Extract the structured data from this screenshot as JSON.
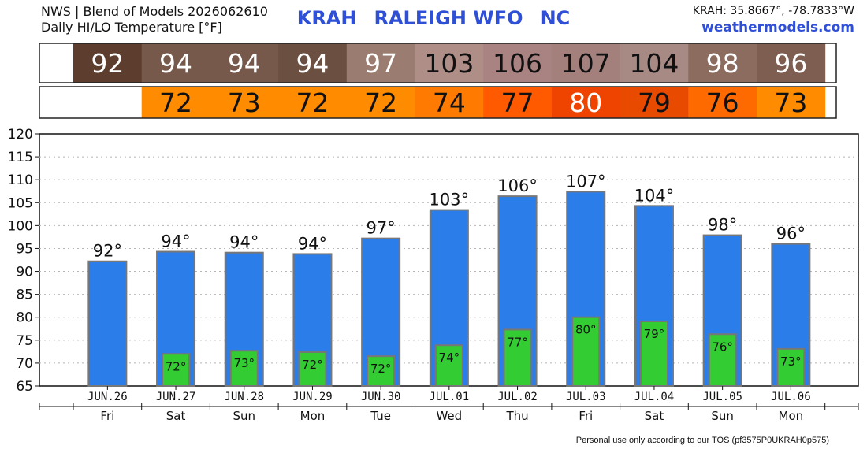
{
  "header": {
    "source_line": "NWS | Blend of Models 2026062610",
    "product_line": "Daily HI/LO Temperature [°F]",
    "station_id": "KRAH",
    "office_name": "RALEIGH WFO",
    "state": "NC",
    "coords": "KRAH: 35.8667°, -78.7833°W",
    "site": "weathermodels.com"
  },
  "footer": {
    "note": "Personal use only according to our TOS (pf3575P0UKRAH0p575)"
  },
  "chart_data": {
    "type": "bar",
    "categories": [
      "JUN.26",
      "JUN.27",
      "JUN.28",
      "JUN.29",
      "JUN.30",
      "JUL.01",
      "JUL.02",
      "JUL.03",
      "JUL.04",
      "JUL.05",
      "JUL.06"
    ],
    "weekdays": [
      "Fri",
      "Sat",
      "Sun",
      "Mon",
      "Tue",
      "Wed",
      "Thu",
      "Fri",
      "Sat",
      "Sun",
      "Mon"
    ],
    "series": [
      {
        "values": [
          92.2,
          94.3,
          94.1,
          93.8,
          97.2,
          103.4,
          106.4,
          107.4,
          104.3,
          97.9,
          96.0
        ],
        "labels": [
          "92°",
          "94°",
          "94°",
          "94°",
          "97°",
          "103°",
          "106°",
          "107°",
          "104°",
          "98°",
          "96°"
        ],
        "color": "#2b7de9"
      },
      {
        "values": [
          null,
          72.0,
          72.7,
          72.4,
          71.5,
          73.9,
          77.3,
          80.0,
          79.1,
          76.3,
          73.1
        ],
        "labels": [
          "",
          "72°",
          "73°",
          "72°",
          "72°",
          "74°",
          "77°",
          "80°",
          "79°",
          "76°",
          "73°"
        ],
        "color": "#33cc33"
      }
    ],
    "table_hi": {
      "values": [
        "92",
        "94",
        "94",
        "94",
        "97",
        "103",
        "106",
        "107",
        "104",
        "98",
        "96"
      ],
      "colors": [
        "#5d3d2e",
        "#76594b",
        "#76594b",
        "#6b4f40",
        "#9a7d70",
        "#b08e88",
        "#a98382",
        "#a4807d",
        "#a88a84",
        "#8c6c5f",
        "#7e5e51"
      ],
      "text_colors": [
        "#ffffff",
        "#ffffff",
        "#ffffff",
        "#ffffff",
        "#ffffff",
        "#111111",
        "#111111",
        "#111111",
        "#111111",
        "#ffffff",
        "#ffffff"
      ]
    },
    "table_lo": {
      "values": [
        "",
        "72",
        "73",
        "72",
        "72",
        "74",
        "77",
        "80",
        "79",
        "76",
        "73"
      ],
      "colors": [
        "#ffffff",
        "#ff8c00",
        "#ff8c00",
        "#ff8c00",
        "#ff8c00",
        "#ff7a00",
        "#ff5a00",
        "#ee4400",
        "#e84a00",
        "#ff6a00",
        "#ff8c00"
      ],
      "text_colors": [
        "#111111",
        "#111111",
        "#111111",
        "#111111",
        "#111111",
        "#111111",
        "#111111",
        "#ffffff",
        "#111111",
        "#111111",
        "#111111"
      ]
    },
    "y_ticks": [
      65,
      70,
      75,
      80,
      85,
      90,
      95,
      100,
      105,
      110,
      115,
      120
    ],
    "ylim": [
      65,
      120
    ],
    "grid": true,
    "bar_border_color": "#777777"
  }
}
